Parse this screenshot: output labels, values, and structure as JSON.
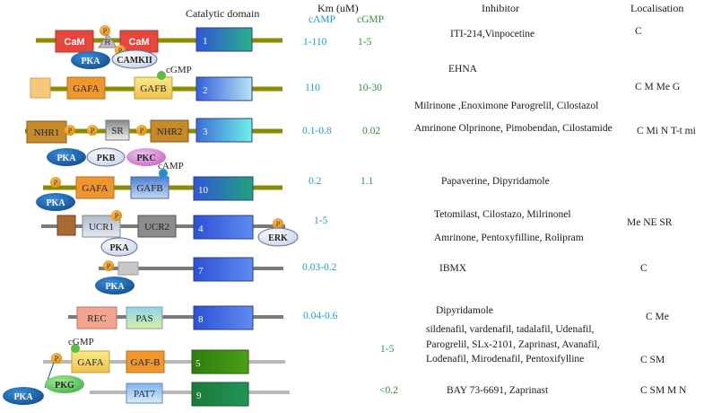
{
  "headers": {
    "catalytic": "Catalytic domain",
    "km": "Km (uM)",
    "camp": "cAMP",
    "cgmp": "cGMP",
    "inhibitor": "Inhibitor",
    "localisation": "Localisation"
  },
  "families": [
    {
      "id": "1",
      "camp": "1-110",
      "cgmp": "1-5",
      "inhibitors": [
        "ITI-214,Vinpocetine"
      ],
      "loc": "C"
    },
    {
      "id": "2",
      "camp": "110",
      "cgmp": "10-30",
      "inhibitors": [
        "EHNA"
      ],
      "loc": "C M Me G"
    },
    {
      "id": "3",
      "camp": "0.1-0.8",
      "cgmp": "0.02",
      "inhibitors": [
        "Milrinone ,Enoximone Parogrelil, Cilostazol",
        "Amrinone Olprinone, Pimobendan, Cilostamide"
      ],
      "loc": "C Mi N T-t mi"
    },
    {
      "id": "10",
      "camp": "0.2",
      "cgmp": "1.1",
      "inhibitors": [
        "Papaverine, Dipyridamole"
      ],
      "loc": ""
    },
    {
      "id": "4",
      "camp": "1-5",
      "cgmp": "",
      "inhibitors": [
        "Tetomilast, Cilostazo, Milrinonel",
        "Amrinone, Pentoxyfilline, Rolipram"
      ],
      "loc": "Me NE SR"
    },
    {
      "id": "7",
      "camp": "0.03-0.2",
      "cgmp": "",
      "inhibitors": [
        "IBMX"
      ],
      "loc": "C"
    },
    {
      "id": "8",
      "camp": "0.04-0.6",
      "cgmp": "",
      "inhibitors": [
        "Dipyridamole"
      ],
      "loc": "C Me"
    },
    {
      "id": "5",
      "camp": "",
      "cgmp": "1-5",
      "inhibitors": [
        "sildenafil, vardenafil, tadalafil, Udenafil,",
        "Parogrelil, SLx-2101, Zaprinast, Avanafil,",
        "Lodenafil, Mirodenafil, Pentoxifylline"
      ],
      "loc": "C SM"
    },
    {
      "id": "9",
      "camp": "",
      "cgmp": "<0.2",
      "inhibitors": [
        "BAY 73-6691, Zaprinast"
      ],
      "loc": "C SM M N"
    }
  ],
  "domain_labels": {
    "cam": "CaM",
    "r": "R",
    "gafa": "GAFA",
    "gafb": "GAFB",
    "gafb_dash": "GAF-B",
    "nhr1": "NHR1",
    "nhr2": "NHR2",
    "sr": "SR",
    "ucr1": "UCR1",
    "ucr2": "UCR2",
    "rec": "REC",
    "pas": "PAS",
    "pat7": "PAT7",
    "p": "P"
  },
  "kinases": {
    "pka": "PKA",
    "pkb": "PKB",
    "pkc": "PKC",
    "pkg": "PKG",
    "camkii": "CAMKII",
    "erk": "ERK"
  },
  "ligands": {
    "cgmp": "cGMP",
    "camp": "cAMP"
  },
  "colors": {
    "olive_line": "#8b8b00",
    "grey_line": "#7a7a7a",
    "camp_text": "#1e9ad6",
    "cgmp_text": "#2f8f3a",
    "cam_red": "#e8453c",
    "gaf_orange": "#f0962e",
    "gafb_yellow": "#f4e07a",
    "nhr_brown": "#c68a2a",
    "pka_blue": "#1f6db5",
    "pkc_pink": "#d98ad6",
    "pkg_green": "#6fcf6a",
    "phospho": "#f39c12"
  }
}
